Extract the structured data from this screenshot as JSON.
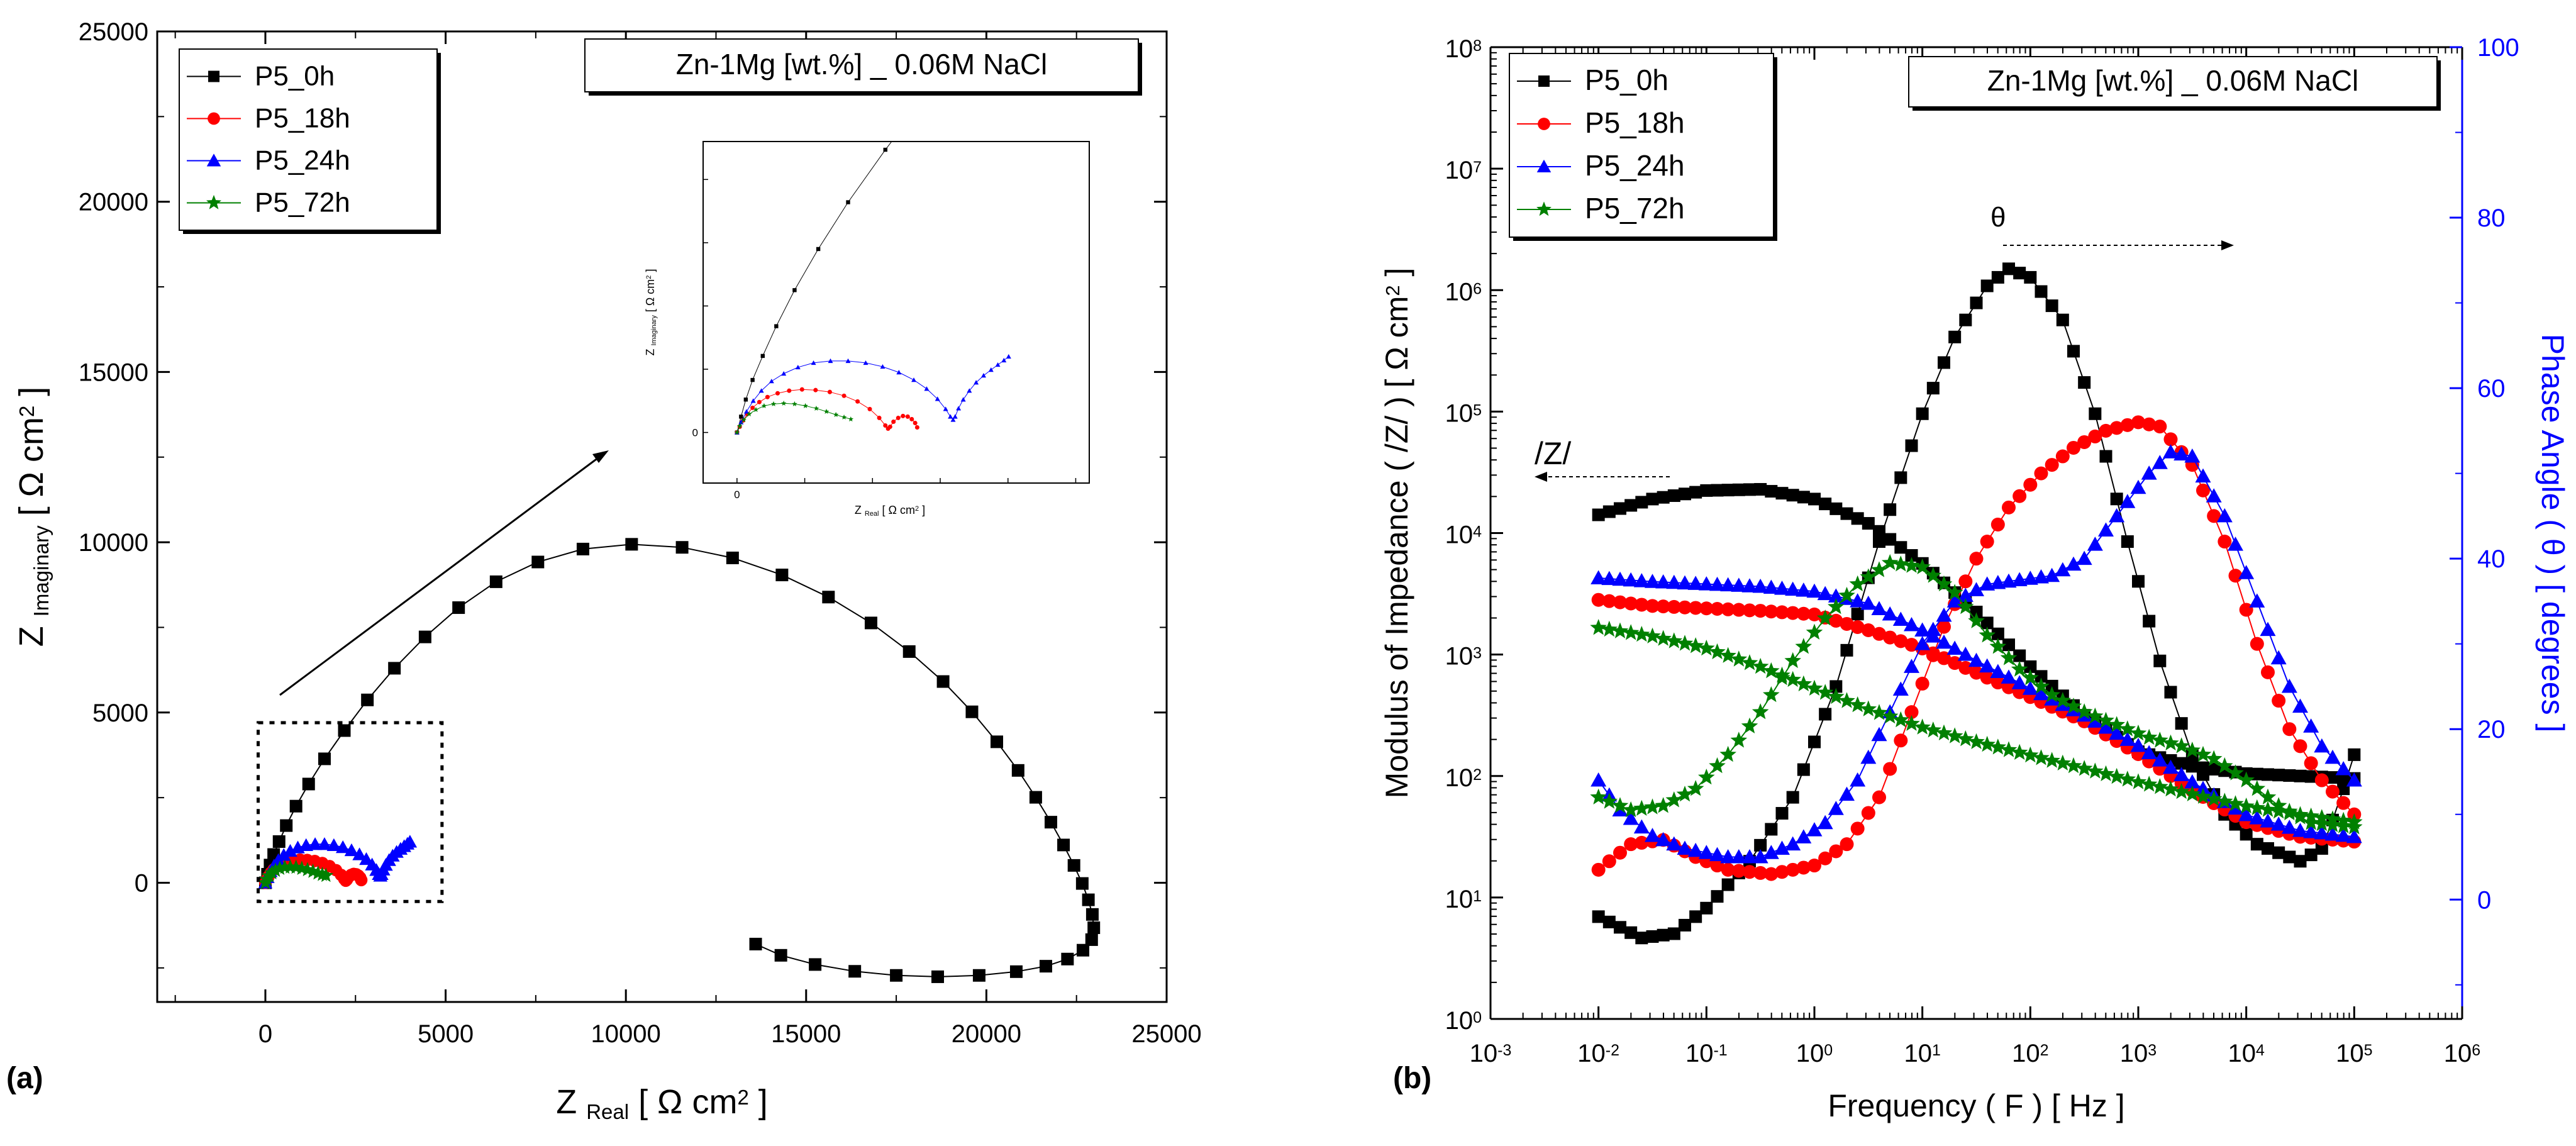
{
  "chart_data": [
    {
      "type": "scatter",
      "panel_label": "(a)",
      "title": "Zn-1Mg [wt.%] _ 0.06M NaCl",
      "xlabel": {
        "main": "Z",
        "sub": "Real",
        "unit": "[ Ω cm",
        "sup": "2",
        "end": " ]"
      },
      "ylabel": {
        "main": "Z",
        "sub": "Imaginary",
        "unit": "[ Ω cm",
        "sup": "2",
        "end": " ]"
      },
      "xlim": [
        -3000,
        25000
      ],
      "ylim": [
        -3500,
        25000
      ],
      "xticks": [
        0,
        5000,
        10000,
        15000,
        20000,
        25000
      ],
      "xtick_labels": [
        "0",
        "5000",
        "10000",
        "15000",
        "20000",
        "25000"
      ],
      "yticks": [
        0,
        5000,
        10000,
        15000,
        20000,
        25000
      ],
      "ytick_labels": [
        "0",
        "5000",
        "10000",
        "15000",
        "20000",
        "25000"
      ],
      "legend": [
        "P5_0h",
        "P5_18h",
        "P5_24h",
        "P5_72h"
      ],
      "series": [
        {
          "name": "P5_0h",
          "color": "#000000",
          "marker": "square",
          "x": [
            0,
            60,
            130,
            230,
            380,
            580,
            850,
            1200,
            1640,
            2190,
            2830,
            3580,
            4430,
            5360,
            6400,
            7560,
            8810,
            10160,
            11560,
            12960,
            14330,
            15620,
            16800,
            17860,
            18800,
            19600,
            20290,
            20880,
            21370,
            21790,
            22140,
            22430,
            22660,
            22830,
            22940,
            22980,
            22920,
            22680,
            22250,
            21650,
            20830,
            19800,
            18650,
            17500,
            16350,
            15250,
            14300,
            13600
          ],
          "y": [
            0,
            250,
            520,
            830,
            1210,
            1680,
            2250,
            2900,
            3640,
            4470,
            5370,
            6300,
            7220,
            8080,
            8840,
            9420,
            9800,
            9940,
            9850,
            9540,
            9040,
            8390,
            7630,
            6790,
            5910,
            5020,
            4140,
            3300,
            2510,
            1780,
            1110,
            510,
            -20,
            -500,
            -930,
            -1320,
            -1670,
            -1980,
            -2240,
            -2450,
            -2610,
            -2720,
            -2760,
            -2720,
            -2600,
            -2400,
            -2130,
            -1800
          ]
        },
        {
          "name": "P5_18h",
          "color": "#ff0000",
          "marker": "circle",
          "x": [
            0,
            40,
            90,
            150,
            230,
            330,
            450,
            600,
            770,
            960,
            1160,
            1370,
            1580,
            1780,
            1960,
            2100,
            2190,
            2230,
            2260,
            2310,
            2380,
            2450,
            2520,
            2580,
            2630,
            2660
          ],
          "y": [
            0,
            90,
            190,
            290,
            390,
            480,
            560,
            620,
            660,
            680,
            670,
            640,
            580,
            490,
            370,
            230,
            110,
            60,
            90,
            170,
            230,
            260,
            250,
            210,
            150,
            80
          ]
        },
        {
          "name": "P5_24h",
          "color": "#0000ff",
          "marker": "triangle",
          "x": [
            0,
            60,
            140,
            240,
            360,
            510,
            690,
            900,
            1130,
            1380,
            1640,
            1900,
            2150,
            2390,
            2610,
            2800,
            2960,
            3080,
            3150,
            3190,
            3220,
            3270,
            3340,
            3430,
            3530,
            3640,
            3750,
            3850,
            3940,
            4010
          ],
          "y": [
            0,
            160,
            330,
            500,
            660,
            810,
            930,
            1030,
            1100,
            1130,
            1130,
            1100,
            1040,
            950,
            830,
            690,
            530,
            370,
            250,
            200,
            250,
            380,
            520,
            660,
            790,
            900,
            990,
            1070,
            1140,
            1200
          ]
        },
        {
          "name": "P5_72h",
          "color": "#008000",
          "marker": "star",
          "x": [
            0,
            40,
            100,
            180,
            280,
            400,
            540,
            690,
            850,
            1010,
            1170,
            1320,
            1460,
            1580,
            1680
          ],
          "y": [
            0,
            100,
            200,
            290,
            360,
            420,
            450,
            460,
            450,
            420,
            380,
            330,
            280,
            240,
            210
          ]
        }
      ],
      "inset": {
        "xlabel": {
          "main": "Z",
          "sub": "Real",
          "unit": "[ Ω cm",
          "sup": "2",
          "end": " ]"
        },
        "ylabel": {
          "main": "Z",
          "sub": "Imaginary",
          "unit": "[ Ω cm",
          "sup": "2",
          "end": " ]"
        },
        "xlim": [
          -500,
          5200
        ],
        "ylim": [
          -800,
          4600
        ],
        "tick_label": "0"
      }
    },
    {
      "type": "line",
      "panel_label": "(b)",
      "title": "Zn-1Mg [wt.%] _ 0.06M NaCl",
      "xlabel": "Frequency ( F ) [ Hz ]",
      "ylabel_left": {
        "text": "Modulus of Impedance ( /Z/ ) [ Ω cm",
        "sup": "2",
        "end": " ]"
      },
      "ylabel_right": "Phase Angle ( θ ) [ degrees ]",
      "xlim_log": [
        -3,
        6
      ],
      "ylim_left_log": [
        0,
        8
      ],
      "ylim_right": [
        -14,
        100
      ],
      "xtick_exponents": [
        "-3",
        "-2",
        "-1",
        "0",
        "1",
        "2",
        "3",
        "4",
        "5",
        "6"
      ],
      "ytick_left_exponents": [
        "0",
        "1",
        "2",
        "3",
        "4",
        "5",
        "6",
        "7",
        "8"
      ],
      "yticks_right": [
        "0",
        "20",
        "40",
        "60",
        "80",
        "100"
      ],
      "base_label": "10",
      "annotation_modulus": "/Z/",
      "annotation_phase": "θ",
      "legend": [
        "P5_0h",
        "P5_18h",
        "P5_24h",
        "P5_72h"
      ],
      "freq_log_range": [
        -2,
        5
      ],
      "points_per_decade": 10,
      "series": [
        {
          "name": "P5_0h",
          "color": "#000000",
          "marker": "square",
          "modulus_log10": [
            [
              -2,
              4.15
            ],
            [
              -1.5,
              4.28
            ],
            [
              -1,
              4.35
            ],
            [
              -0.5,
              4.36
            ],
            [
              0,
              4.28
            ],
            [
              0.5,
              4.08
            ],
            [
              1,
              3.75
            ],
            [
              1.5,
              3.35
            ],
            [
              2,
              2.9
            ],
            [
              2.5,
              2.5
            ],
            [
              3,
              2.2
            ],
            [
              3.5,
              2.08
            ],
            [
              4,
              2.02
            ],
            [
              4.5,
              2.0
            ],
            [
              5,
              1.98
            ]
          ],
          "phase_deg": [
            [
              -2,
              -2.0
            ],
            [
              -1.6,
              -4.5
            ],
            [
              -1.3,
              -4.0
            ],
            [
              -1,
              -1.0
            ],
            [
              -0.6,
              4.5
            ],
            [
              -0.2,
              12.0
            ],
            [
              0.2,
              25.0
            ],
            [
              0.6,
              42.0
            ],
            [
              1,
              57.0
            ],
            [
              1.3,
              66.0
            ],
            [
              1.6,
              72.0
            ],
            [
              1.8,
              74.0
            ],
            [
              2,
              73.0
            ],
            [
              2.3,
              68.0
            ],
            [
              2.6,
              57.0
            ],
            [
              2.9,
              42.0
            ],
            [
              3.2,
              28.0
            ],
            [
              3.5,
              17.0
            ],
            [
              3.8,
              10.0
            ],
            [
              4.1,
              6.5
            ],
            [
              4.3,
              5.5
            ],
            [
              4.5,
              4.5
            ],
            [
              4.7,
              6.0
            ],
            [
              4.85,
              11.0
            ],
            [
              5,
              17.0
            ]
          ]
        },
        {
          "name": "P5_18h",
          "color": "#ff0000",
          "marker": "circle",
          "modulus_log10": [
            [
              -2,
              3.45
            ],
            [
              -1.5,
              3.4
            ],
            [
              -1,
              3.38
            ],
            [
              -0.5,
              3.36
            ],
            [
              0,
              3.33
            ],
            [
              0.5,
              3.2
            ],
            [
              1,
              3.05
            ],
            [
              1.5,
              2.85
            ],
            [
              2,
              2.65
            ],
            [
              2.5,
              2.45
            ],
            [
              3,
              2.18
            ],
            [
              3.5,
              1.88
            ],
            [
              4,
              1.62
            ],
            [
              4.5,
              1.5
            ],
            [
              5,
              1.46
            ]
          ],
          "phase_deg": [
            [
              -2,
              3.5
            ],
            [
              -1.7,
              6.5
            ],
            [
              -1.4,
              7.0
            ],
            [
              -1.1,
              5.0
            ],
            [
              -0.8,
              3.5
            ],
            [
              -0.4,
              3.0
            ],
            [
              0,
              4.0
            ],
            [
              0.3,
              6.5
            ],
            [
              0.6,
              12.0
            ],
            [
              0.9,
              22.0
            ],
            [
              1.2,
              32.0
            ],
            [
              1.5,
              40.0
            ],
            [
              1.8,
              46.0
            ],
            [
              2.1,
              50.0
            ],
            [
              2.4,
              53.0
            ],
            [
              2.7,
              55.0
            ],
            [
              3,
              56.0
            ],
            [
              3.2,
              55.5
            ],
            [
              3.5,
              51.0
            ],
            [
              3.8,
              42.0
            ],
            [
              4.1,
              30.0
            ],
            [
              4.4,
              20.0
            ],
            [
              4.7,
              14.0
            ],
            [
              5,
              10.0
            ]
          ]
        },
        {
          "name": "P5_24h",
          "color": "#0000ff",
          "marker": "triangle",
          "modulus_log10": [
            [
              -2,
              3.63
            ],
            [
              -1.5,
              3.6
            ],
            [
              -1,
              3.58
            ],
            [
              -0.5,
              3.56
            ],
            [
              0,
              3.52
            ],
            [
              0.5,
              3.42
            ],
            [
              1,
              3.2
            ],
            [
              1.5,
              2.95
            ],
            [
              2,
              2.72
            ],
            [
              2.5,
              2.5
            ],
            [
              3,
              2.25
            ],
            [
              3.5,
              1.95
            ],
            [
              4,
              1.68
            ],
            [
              4.5,
              1.55
            ],
            [
              5,
              1.5
            ]
          ],
          "phase_deg": [
            [
              -2,
              14.0
            ],
            [
              -1.8,
              10.5
            ],
            [
              -1.5,
              7.5
            ],
            [
              -1.2,
              6.0
            ],
            [
              -0.8,
              5.0
            ],
            [
              -0.5,
              5.0
            ],
            [
              -0.2,
              6.5
            ],
            [
              0.1,
              9.0
            ],
            [
              0.4,
              14.0
            ],
            [
              0.7,
              22.0
            ],
            [
              1,
              30.0
            ],
            [
              1.3,
              35.0
            ],
            [
              1.6,
              37.0
            ],
            [
              1.9,
              37.5
            ],
            [
              2.2,
              38.0
            ],
            [
              2.5,
              40.0
            ],
            [
              2.8,
              45.0
            ],
            [
              3.1,
              50.0
            ],
            [
              3.3,
              52.5
            ],
            [
              3.5,
              52.0
            ],
            [
              3.8,
              45.0
            ],
            [
              4.1,
              35.0
            ],
            [
              4.4,
              25.0
            ],
            [
              4.7,
              18.0
            ],
            [
              5,
              14.0
            ]
          ]
        },
        {
          "name": "P5_72h",
          "color": "#008000",
          "marker": "star",
          "modulus_log10": [
            [
              -2,
              3.22
            ],
            [
              -1.5,
              3.15
            ],
            [
              -1,
              3.05
            ],
            [
              -0.5,
              2.9
            ],
            [
              0,
              2.72
            ],
            [
              0.5,
              2.55
            ],
            [
              1,
              2.4
            ],
            [
              1.5,
              2.28
            ],
            [
              2,
              2.17
            ],
            [
              2.5,
              2.06
            ],
            [
              3,
              1.95
            ],
            [
              3.5,
              1.85
            ],
            [
              4,
              1.75
            ],
            [
              4.5,
              1.68
            ],
            [
              5,
              1.62
            ]
          ],
          "phase_deg": [
            [
              -2,
              12.0
            ],
            [
              -1.7,
              10.5
            ],
            [
              -1.4,
              11.0
            ],
            [
              -1.1,
              13.0
            ],
            [
              -0.8,
              17.0
            ],
            [
              -0.5,
              22.0
            ],
            [
              -0.2,
              28.0
            ],
            [
              0.1,
              33.0
            ],
            [
              0.4,
              37.0
            ],
            [
              0.7,
              39.5
            ],
            [
              1,
              39.0
            ],
            [
              1.3,
              36.0
            ],
            [
              1.6,
              31.0
            ],
            [
              1.9,
              27.0
            ],
            [
              2.2,
              24.0
            ],
            [
              2.5,
              22.0
            ],
            [
              2.8,
              20.5
            ],
            [
              3.1,
              19.0
            ],
            [
              3.4,
              18.0
            ],
            [
              3.7,
              16.5
            ],
            [
              4,
              14.0
            ],
            [
              4.3,
              11.0
            ],
            [
              4.6,
              9.0
            ],
            [
              5,
              8.5
            ]
          ]
        }
      ]
    }
  ]
}
